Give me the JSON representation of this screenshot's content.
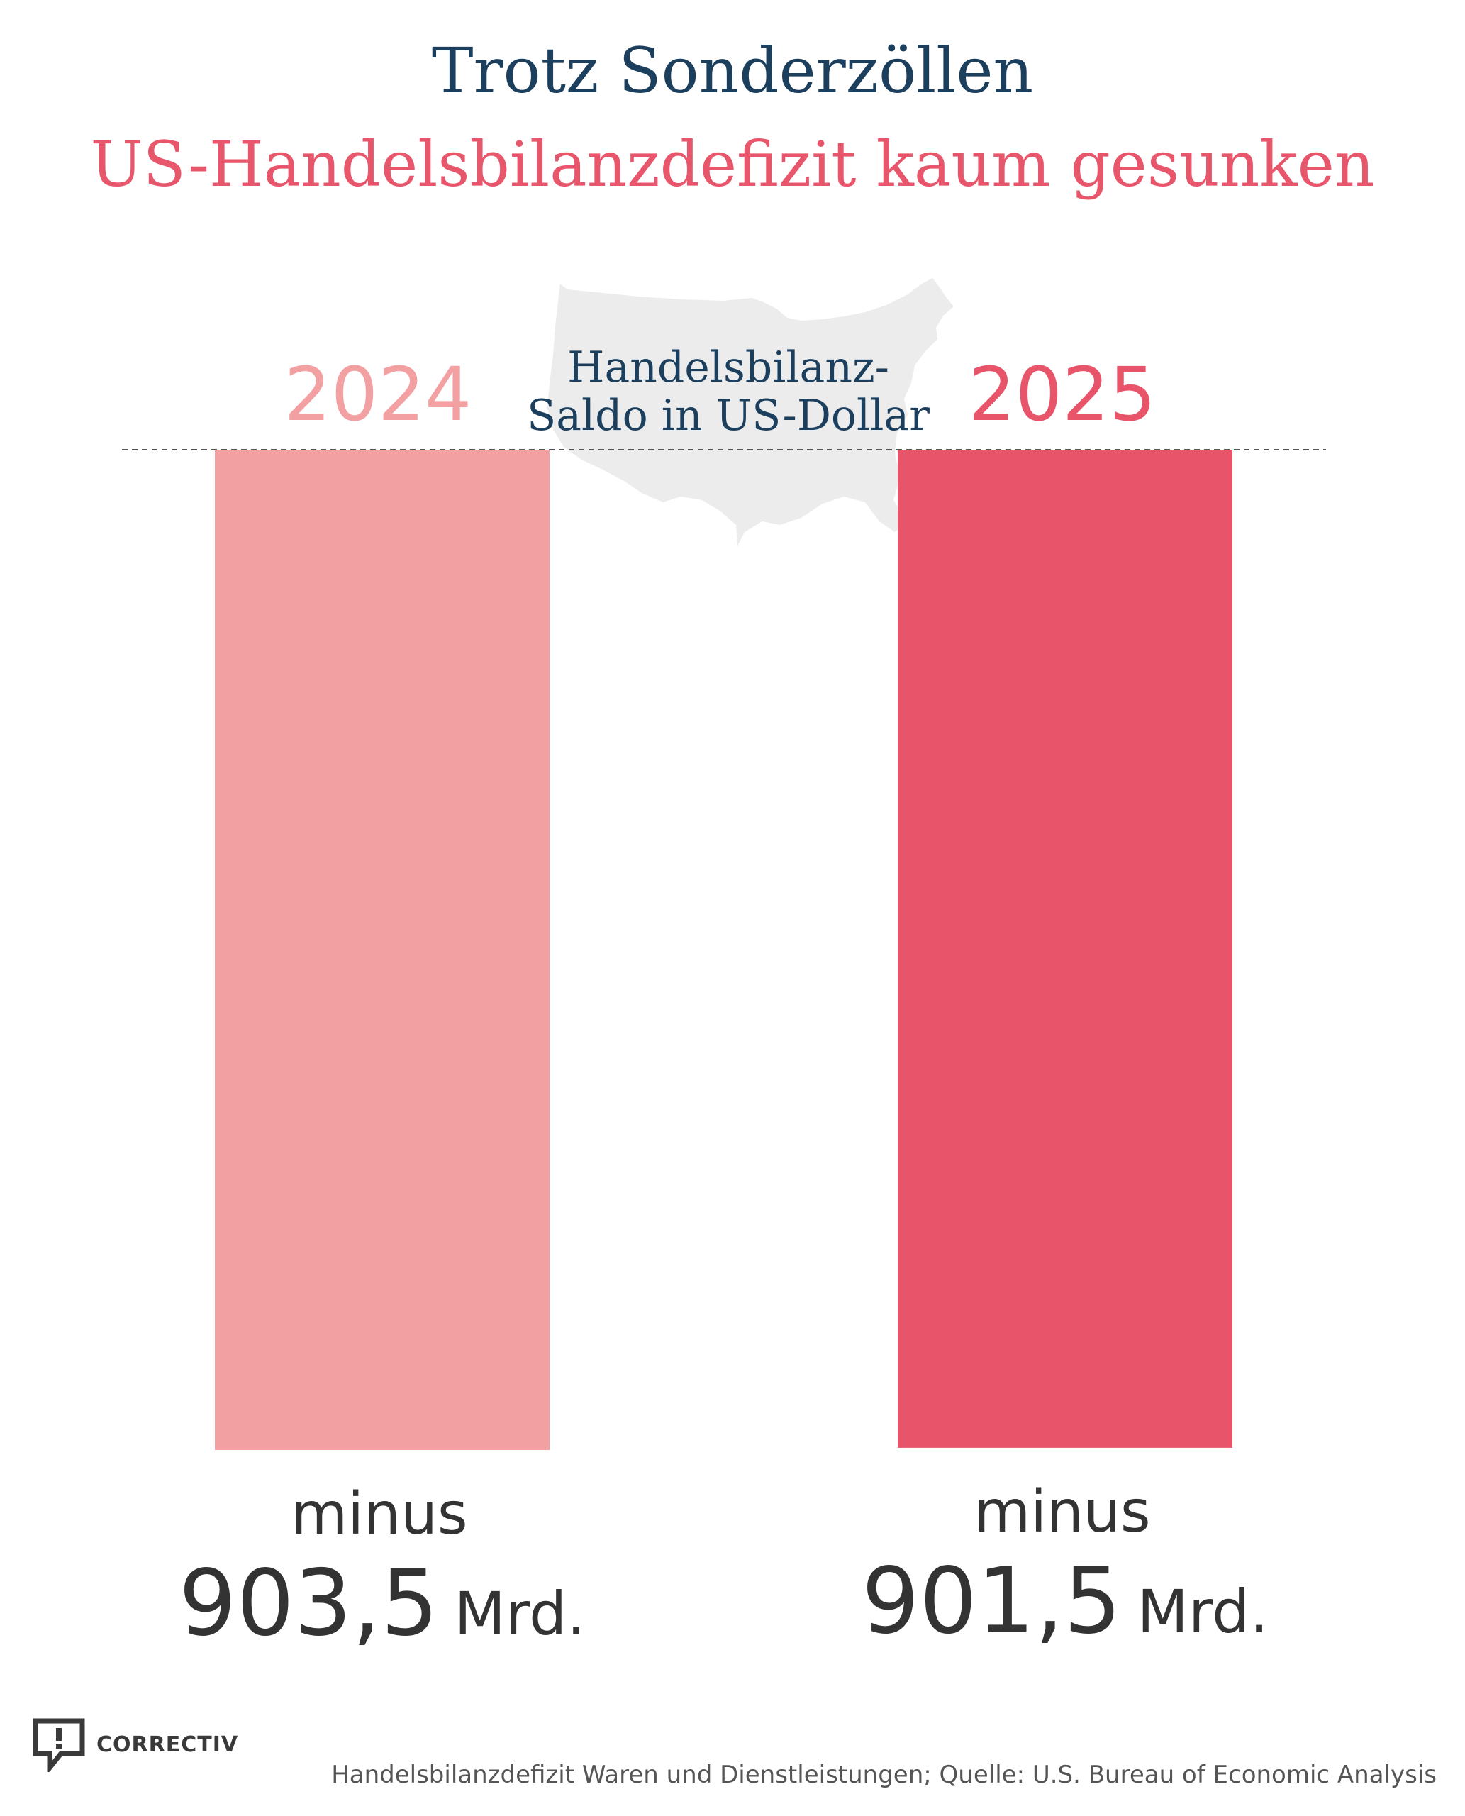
{
  "title": "Trotz Sonderzöllen",
  "subtitle": "US-Handelsbilanzdefizit kaum gesunken",
  "center_label": [
    "Handelsbilanz-",
    "Saldo in US-Dollar"
  ],
  "logo": "CORRECTIV",
  "source": "Handelsbilanzdefizit Waren und Dienstleistungen; Quelle: U.S. Bureau of Economic Analysis",
  "colors": {
    "bar_2024": "#f3a0a3",
    "bar_2025": "#e8546a",
    "title": "#1d3f5e",
    "map": "#ececec"
  },
  "chart_data": {
    "type": "bar",
    "categories": [
      "2024",
      "2025"
    ],
    "values": [
      -903.5,
      -901.5
    ],
    "value_labels": [
      {
        "prefix": "minus",
        "number": "903,5",
        "unit": "Mrd."
      },
      {
        "prefix": "minus",
        "number": "901,5",
        "unit": "Mrd."
      }
    ],
    "ylim": [
      -903.5,
      0
    ],
    "grid": false,
    "baseline": "dashed"
  }
}
